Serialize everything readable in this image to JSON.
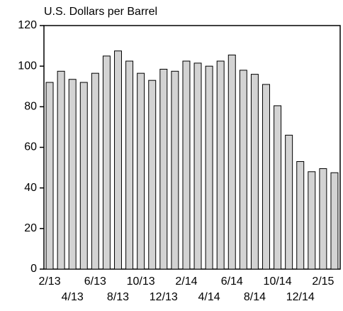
{
  "chart_data": {
    "type": "bar",
    "title": "U.S. Dollars per Barrel",
    "categories": [
      "2/13",
      null,
      "4/13",
      null,
      "6/13",
      null,
      "8/13",
      null,
      "10/13",
      null,
      "12/13",
      null,
      "2/14",
      null,
      "4/14",
      null,
      "6/14",
      null,
      "8/14",
      null,
      "10/14",
      null,
      "12/14",
      null,
      "2/15",
      null
    ],
    "values": [
      92,
      97.5,
      93.5,
      92,
      96.5,
      105,
      107.5,
      102.5,
      96.5,
      93,
      98.5,
      97.5,
      102.5,
      101.5,
      100,
      102.5,
      105.5,
      98,
      96,
      91,
      80.5,
      66,
      53,
      48,
      49.5,
      47.5
    ],
    "color": "#d3d3d3",
    "ylim": [
      0,
      120
    ],
    "yticks": [
      0,
      20,
      40,
      60,
      80,
      100,
      120
    ],
    "grid": false
  }
}
